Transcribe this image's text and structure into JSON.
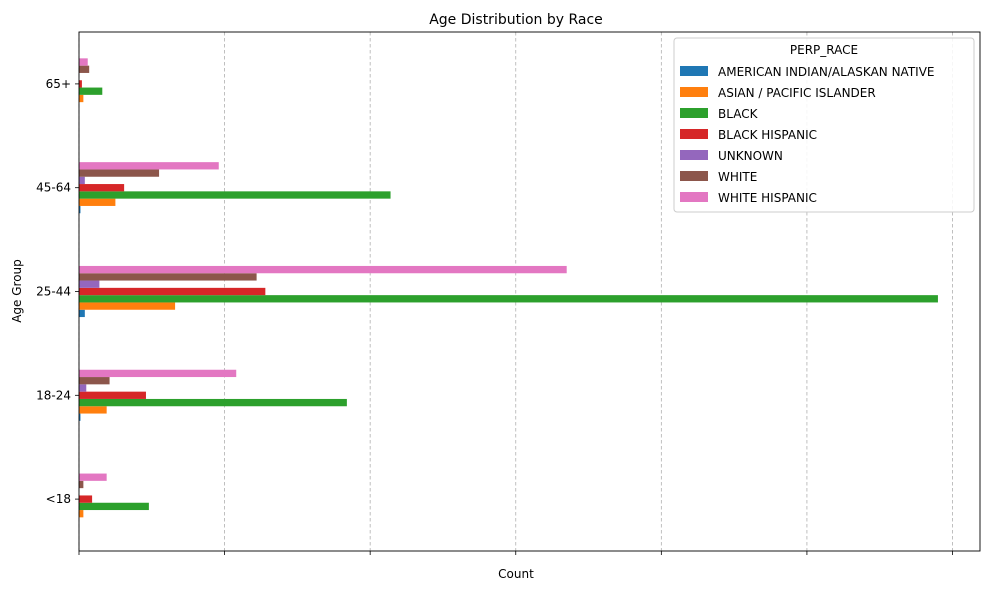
{
  "chart_data": {
    "type": "bar",
    "orientation": "horizontal",
    "title": "Age Distribution by Race",
    "xlabel": "Count",
    "ylabel": "Age Group",
    "categories": [
      "<18",
      "18-24",
      "25-44",
      "45-64",
      "65+"
    ],
    "xlim": [
      0,
      600
    ],
    "x_ticks": [
      0,
      100,
      200,
      300,
      400,
      500,
      600
    ],
    "x_tick_labels_visible": false,
    "grid": "x-axis dashed",
    "legend_title": "PERP_RACE",
    "legend_position": "top-right",
    "series": [
      {
        "name": "AMERICAN INDIAN/ALASKAN NATIVE",
        "color": "#1f77b4",
        "values": [
          0,
          1,
          4,
          1,
          0
        ]
      },
      {
        "name": "ASIAN / PACIFIC ISLANDER",
        "color": "#ff7f0e",
        "values": [
          3,
          19,
          66,
          25,
          3
        ]
      },
      {
        "name": "BLACK",
        "color": "#2ca02c",
        "values": [
          48,
          184,
          590,
          214,
          16
        ]
      },
      {
        "name": "BLACK HISPANIC",
        "color": "#d62728",
        "values": [
          9,
          46,
          128,
          31,
          2
        ]
      },
      {
        "name": "UNKNOWN",
        "color": "#9467bd",
        "values": [
          0,
          5,
          14,
          4,
          0
        ]
      },
      {
        "name": "WHITE",
        "color": "#8c564b",
        "values": [
          3,
          21,
          122,
          55,
          7
        ]
      },
      {
        "name": "WHITE HISPANIC",
        "color": "#e377c2",
        "values": [
          19,
          108,
          335,
          96,
          6
        ]
      }
    ]
  }
}
